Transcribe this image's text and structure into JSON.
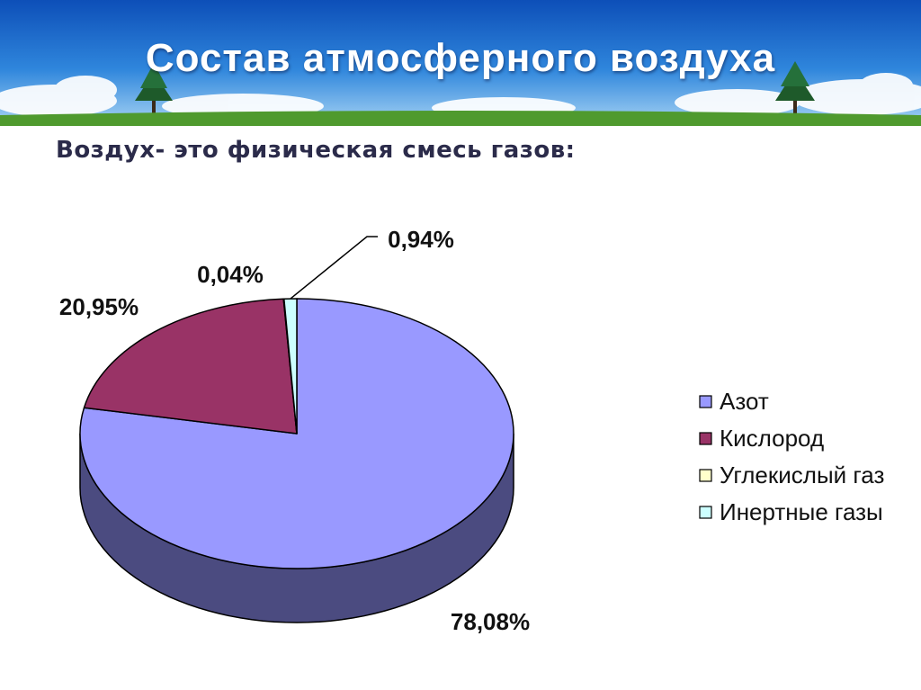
{
  "slide": {
    "title": "Состав атмосферного воздуха",
    "subtitle": "Воздух- это физическая смесь газов:"
  },
  "colors": {
    "banner_top": "#1565c8",
    "banner_bottom": "#8fc3ef",
    "grass": "#4f9a2e"
  },
  "chart_data": {
    "type": "pie",
    "three_d": true,
    "legend_position": "right",
    "series": [
      {
        "name": "Азот",
        "value": 78.08,
        "label": "78,08%",
        "color": "#9999ff",
        "side": "#4b4b80"
      },
      {
        "name": "Кислород",
        "value": 20.95,
        "label": "20,95%",
        "color": "#993366",
        "side": "#4d1a33"
      },
      {
        "name": "Углекислый газ",
        "value": 0.04,
        "label": "0,04%",
        "color": "#ffffcc",
        "side": "#808066"
      },
      {
        "name": "Инертные газы",
        "value": 0.94,
        "label": "0,94%",
        "color": "#ccffff",
        "side": "#668080"
      }
    ]
  }
}
